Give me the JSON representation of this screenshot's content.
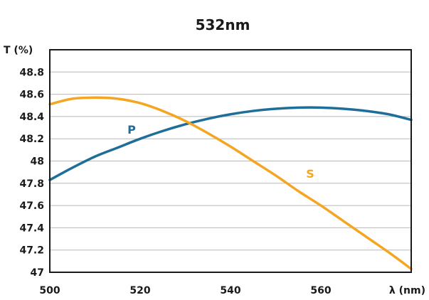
{
  "chart_data": {
    "type": "line",
    "title": "532nm",
    "xlabel": "λ (nm)",
    "ylabel": "T (%)",
    "xlim": [
      500,
      580
    ],
    "ylim": [
      47,
      49
    ],
    "x_ticks": [
      500,
      520,
      540,
      560
    ],
    "y_ticks": [
      47,
      47.2,
      47.4,
      47.6,
      47.8,
      48,
      48.2,
      48.4,
      48.6,
      48.8
    ],
    "x_tick_labels": [
      "500",
      "520",
      "540",
      "560"
    ],
    "y_tick_labels": [
      "47",
      "47.2",
      "47.4",
      "47.6",
      "47.8",
      "48",
      "48.2",
      "48.4",
      "48.6",
      "48.8"
    ],
    "grid": true,
    "series": [
      {
        "name": "P",
        "color": "#1f6e99",
        "x": [
          500,
          505,
          510,
          515,
          520,
          525,
          530,
          535,
          540,
          545,
          550,
          555,
          560,
          565,
          570,
          575,
          580
        ],
        "values": [
          47.83,
          47.94,
          48.04,
          48.12,
          48.2,
          48.27,
          48.33,
          48.38,
          48.42,
          48.45,
          48.47,
          48.48,
          48.48,
          48.47,
          48.45,
          48.42,
          48.37
        ]
      },
      {
        "name": "S",
        "color": "#f4a623",
        "x": [
          500,
          505,
          510,
          515,
          520,
          525,
          530,
          535,
          540,
          545,
          550,
          555,
          560,
          565,
          570,
          575,
          580
        ],
        "values": [
          48.51,
          48.56,
          48.57,
          48.56,
          48.52,
          48.45,
          48.36,
          48.25,
          48.13,
          48.0,
          47.87,
          47.73,
          47.6,
          47.46,
          47.32,
          47.18,
          47.03
        ]
      }
    ]
  }
}
